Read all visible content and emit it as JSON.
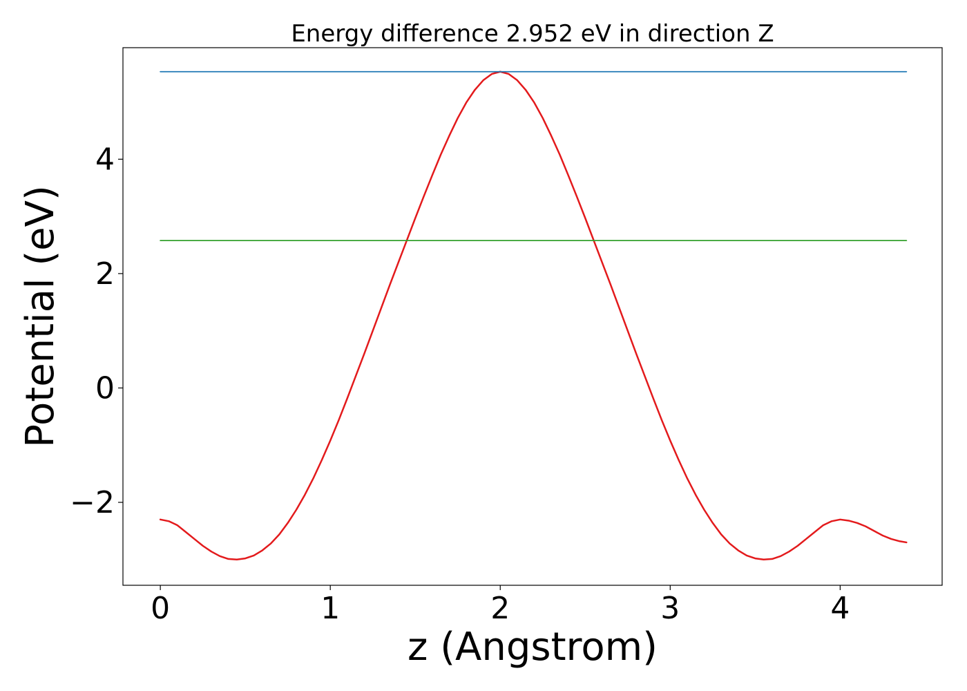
{
  "chart_data": {
    "type": "line",
    "title": "Energy difference 2.952 eV in direction Z",
    "xlabel": "z (Angstrom)",
    "ylabel": "Potential (eV)",
    "xlim": [
      -0.22,
      4.6
    ],
    "ylim": [
      -3.45,
      5.95
    ],
    "xticks": [
      0,
      1,
      2,
      3,
      4
    ],
    "xtick_labels": [
      "0",
      "1",
      "2",
      "3",
      "4"
    ],
    "yticks": [
      -2,
      0,
      2,
      4
    ],
    "ytick_labels": [
      "−2",
      "0",
      "2",
      "4"
    ],
    "grid": false,
    "legend": "none",
    "series": [
      {
        "color": "#e31a1c",
        "x": [
          0.0,
          0.05,
          0.1,
          0.15,
          0.2,
          0.25,
          0.3,
          0.35,
          0.4,
          0.45,
          0.5,
          0.55,
          0.6,
          0.65,
          0.7,
          0.75,
          0.8,
          0.85,
          0.9,
          0.95,
          1.0,
          1.05,
          1.1,
          1.15,
          1.2,
          1.25,
          1.3,
          1.35,
          1.4,
          1.45,
          1.5,
          1.55,
          1.6,
          1.65,
          1.7,
          1.75,
          1.8,
          1.85,
          1.9,
          1.95,
          2.0,
          2.05,
          2.1,
          2.15,
          2.2,
          2.25,
          2.3,
          2.35,
          2.4,
          2.45,
          2.5,
          2.55,
          2.6,
          2.65,
          2.7,
          2.75,
          2.8,
          2.85,
          2.9,
          2.95,
          3.0,
          3.05,
          3.1,
          3.15,
          3.2,
          3.25,
          3.3,
          3.35,
          3.4,
          3.45,
          3.5,
          3.55,
          3.6,
          3.65,
          3.7,
          3.75,
          3.8,
          3.85,
          3.9,
          3.95,
          4.0,
          4.05,
          4.1,
          4.15,
          4.2,
          4.25,
          4.3,
          4.35,
          4.39
        ],
        "y": [
          -2.3,
          -2.33,
          -2.4,
          -2.52,
          -2.64,
          -2.76,
          -2.86,
          -2.94,
          -2.99,
          -3.0,
          -2.98,
          -2.93,
          -2.84,
          -2.72,
          -2.56,
          -2.36,
          -2.13,
          -1.87,
          -1.58,
          -1.26,
          -0.92,
          -0.56,
          -0.18,
          0.21,
          0.6,
          1.0,
          1.4,
          1.8,
          2.19,
          2.58,
          2.97,
          3.35,
          3.72,
          4.08,
          4.41,
          4.72,
          4.99,
          5.21,
          5.38,
          5.49,
          5.53,
          5.49,
          5.38,
          5.21,
          4.99,
          4.72,
          4.41,
          4.08,
          3.72,
          3.35,
          2.97,
          2.58,
          2.19,
          1.8,
          1.4,
          1.0,
          0.6,
          0.21,
          -0.18,
          -0.56,
          -0.92,
          -1.26,
          -1.58,
          -1.87,
          -2.13,
          -2.36,
          -2.56,
          -2.72,
          -2.84,
          -2.93,
          -2.98,
          -3.0,
          -2.99,
          -2.94,
          -2.86,
          -2.76,
          -2.64,
          -2.52,
          -2.4,
          -2.33,
          -2.3,
          -2.32,
          -2.36,
          -2.42,
          -2.5,
          -2.58,
          -2.64,
          -2.68,
          -2.7
        ]
      },
      {
        "color": "#1f78b4",
        "x": [
          0.0,
          4.39
        ],
        "y": [
          5.53,
          5.53
        ]
      },
      {
        "color": "#33a02c",
        "x": [
          0.0,
          4.39
        ],
        "y": [
          2.578,
          2.578
        ]
      }
    ]
  }
}
